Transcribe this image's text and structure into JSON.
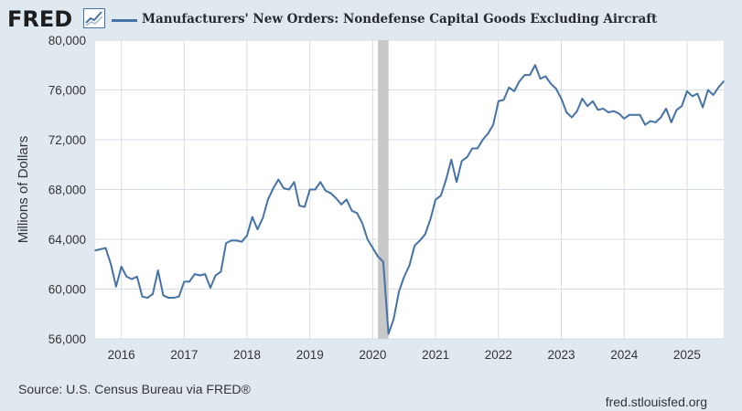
{
  "header": {
    "logo_text": "FRED",
    "title": "Manufacturers' New Orders: Nondefense Capital Goods Excluding Aircraft"
  },
  "footer": {
    "source": "Source: U.S. Census Bureau via FRED®",
    "url": "fred.stlouisfed.org"
  },
  "colors": {
    "line": "#4572a7",
    "background": "#e1e9f0",
    "plot_background": "#ffffff",
    "recession": "#c8c8c8",
    "grid": "#d7dde5"
  },
  "chart_data": {
    "type": "line",
    "title": "Manufacturers' New Orders: Nondefense Capital Goods Excluding Aircraft",
    "ylabel": "Millions of Dollars",
    "xlabel": "",
    "ylim": [
      56000,
      80000
    ],
    "xlim": [
      "2015-08",
      "2025-08"
    ],
    "y_ticks": [
      56000,
      60000,
      64000,
      68000,
      72000,
      76000,
      80000
    ],
    "y_tick_labels": [
      "56,000",
      "60,000",
      "64,000",
      "68,000",
      "72,000",
      "76,000",
      "80,000"
    ],
    "x_tick_labels": [
      "2016",
      "2017",
      "2018",
      "2019",
      "2020",
      "2021",
      "2022",
      "2023",
      "2024",
      "2025"
    ],
    "grid": true,
    "recession_shading": [
      {
        "start": "2020-02",
        "end": "2020-04"
      }
    ],
    "series": [
      {
        "frequency": "monthly",
        "start": "2015-08",
        "values": [
          63100,
          63200,
          63300,
          62000,
          60200,
          61800,
          61000,
          60800,
          61000,
          59400,
          59300,
          59600,
          61500,
          59500,
          59300,
          59300,
          59400,
          60600,
          60600,
          61200,
          61100,
          61200,
          60100,
          61100,
          61400,
          63700,
          63900,
          63900,
          63800,
          64300,
          65800,
          64800,
          65700,
          67200,
          68100,
          68800,
          68100,
          68000,
          68600,
          66700,
          66600,
          68000,
          68000,
          68600,
          67900,
          67700,
          67300,
          66800,
          67200,
          66300,
          66100,
          65300,
          64000,
          63300,
          62600,
          62200,
          56400,
          57600,
          59800,
          61000,
          61900,
          63500,
          63900,
          64400,
          65600,
          67200,
          67500,
          68800,
          70400,
          68600,
          70300,
          70600,
          71300,
          71300,
          72000,
          72500,
          73200,
          75100,
          75200,
          76200,
          75900,
          76700,
          77200,
          77200,
          78000,
          76900,
          77100,
          76500,
          76100,
          75300,
          74200,
          73800,
          74300,
          75300,
          74700,
          75100,
          74400,
          74500,
          74200,
          74300,
          74100,
          73700,
          74000,
          74000,
          74000,
          73200,
          73500,
          73400,
          73800,
          74500,
          73400,
          74400,
          74700,
          75900,
          75500,
          75700,
          74600,
          76000,
          75600,
          76200,
          76700
        ]
      }
    ]
  }
}
